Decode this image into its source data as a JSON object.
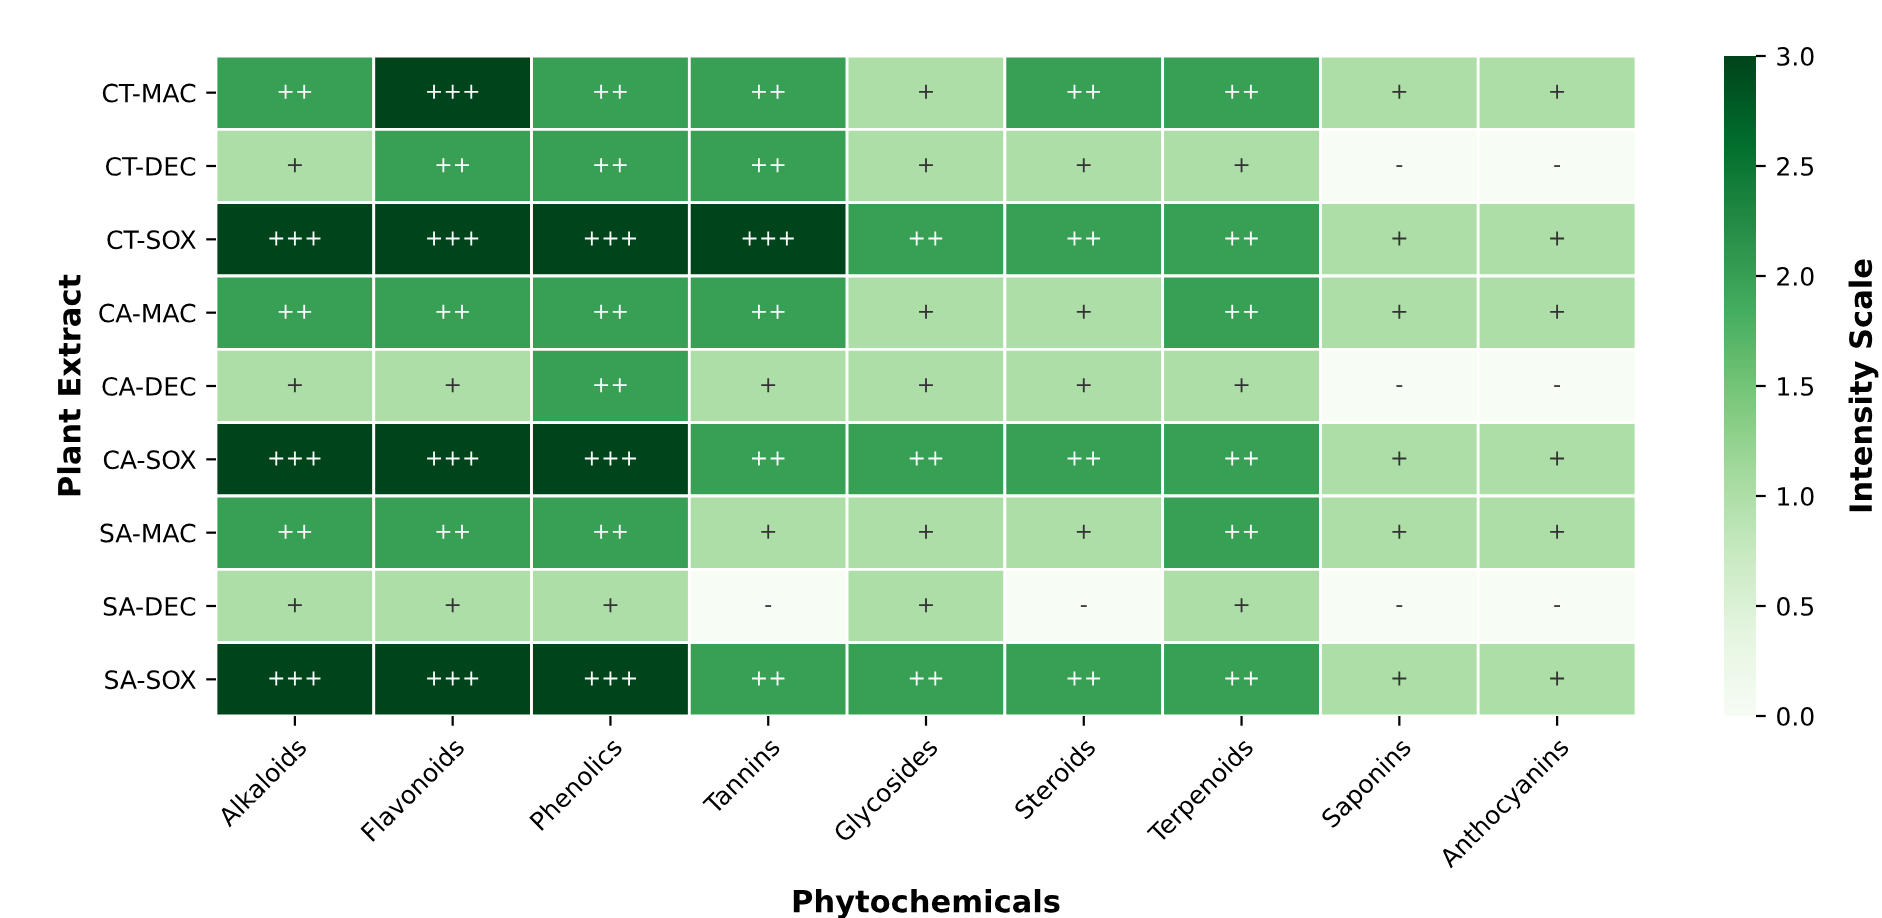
{
  "chart_data": {
    "type": "heatmap",
    "xlabel": "Phytochemicals",
    "ylabel": "Plant Extract",
    "clabel": "Intensity Scale",
    "categories": [
      "Alkaloids",
      "Flavonoids",
      "Phenolics",
      "Tannins",
      "Glycosides",
      "Steroids",
      "Terpenoids",
      "Saponins",
      "Anthocyanins"
    ],
    "y_categories": [
      "CT-MAC",
      "CT-DEC",
      "CT-SOX",
      "CA-MAC",
      "CA-DEC",
      "CA-SOX",
      "SA-MAC",
      "SA-DEC",
      "SA-SOX"
    ],
    "cells": [
      [
        2,
        3,
        2,
        2,
        1,
        2,
        2,
        1,
        1
      ],
      [
        1,
        2,
        2,
        2,
        1,
        1,
        1,
        0,
        0
      ],
      [
        3,
        3,
        3,
        3,
        2,
        2,
        2,
        1,
        1
      ],
      [
        2,
        2,
        2,
        2,
        1,
        1,
        2,
        1,
        1
      ],
      [
        1,
        1,
        2,
        1,
        1,
        1,
        1,
        0,
        0
      ],
      [
        3,
        3,
        3,
        2,
        2,
        2,
        2,
        1,
        1
      ],
      [
        2,
        2,
        2,
        1,
        1,
        1,
        2,
        1,
        1
      ],
      [
        1,
        1,
        1,
        0,
        1,
        0,
        1,
        0,
        0
      ],
      [
        3,
        3,
        3,
        2,
        2,
        2,
        2,
        1,
        1
      ]
    ],
    "cell_labels": [
      [
        "++",
        "+++",
        "++",
        "++",
        "+",
        "++",
        "++",
        "+",
        "+"
      ],
      [
        "+",
        "++",
        "++",
        "++",
        "+",
        "+",
        "+",
        "-",
        "-"
      ],
      [
        "+++",
        "+++",
        "+++",
        "+++",
        "++",
        "++",
        "++",
        "+",
        "+"
      ],
      [
        "++",
        "++",
        "++",
        "++",
        "+",
        "+",
        "++",
        "+",
        "+"
      ],
      [
        "+",
        "+",
        "++",
        "+",
        "+",
        "+",
        "+",
        "-",
        "-"
      ],
      [
        "+++",
        "+++",
        "+++",
        "++",
        "++",
        "++",
        "++",
        "+",
        "+"
      ],
      [
        "++",
        "++",
        "++",
        "+",
        "+",
        "+",
        "++",
        "+",
        "+"
      ],
      [
        "+",
        "+",
        "+",
        "-",
        "+",
        "-",
        "+",
        "-",
        "-"
      ],
      [
        "+++",
        "+++",
        "+++",
        "++",
        "++",
        "++",
        "++",
        "+",
        "+"
      ]
    ],
    "clim": [
      0,
      3
    ],
    "cticks": [
      {
        "value": 0,
        "label": "0.0"
      },
      {
        "value": 0.5,
        "label": "0.5"
      },
      {
        "value": 1,
        "label": "1.0"
      },
      {
        "value": 1.5,
        "label": "1.5"
      },
      {
        "value": 2,
        "label": "2.0"
      },
      {
        "value": 2.5,
        "label": "2.5"
      },
      {
        "value": 3,
        "label": "3.0"
      }
    ]
  }
}
